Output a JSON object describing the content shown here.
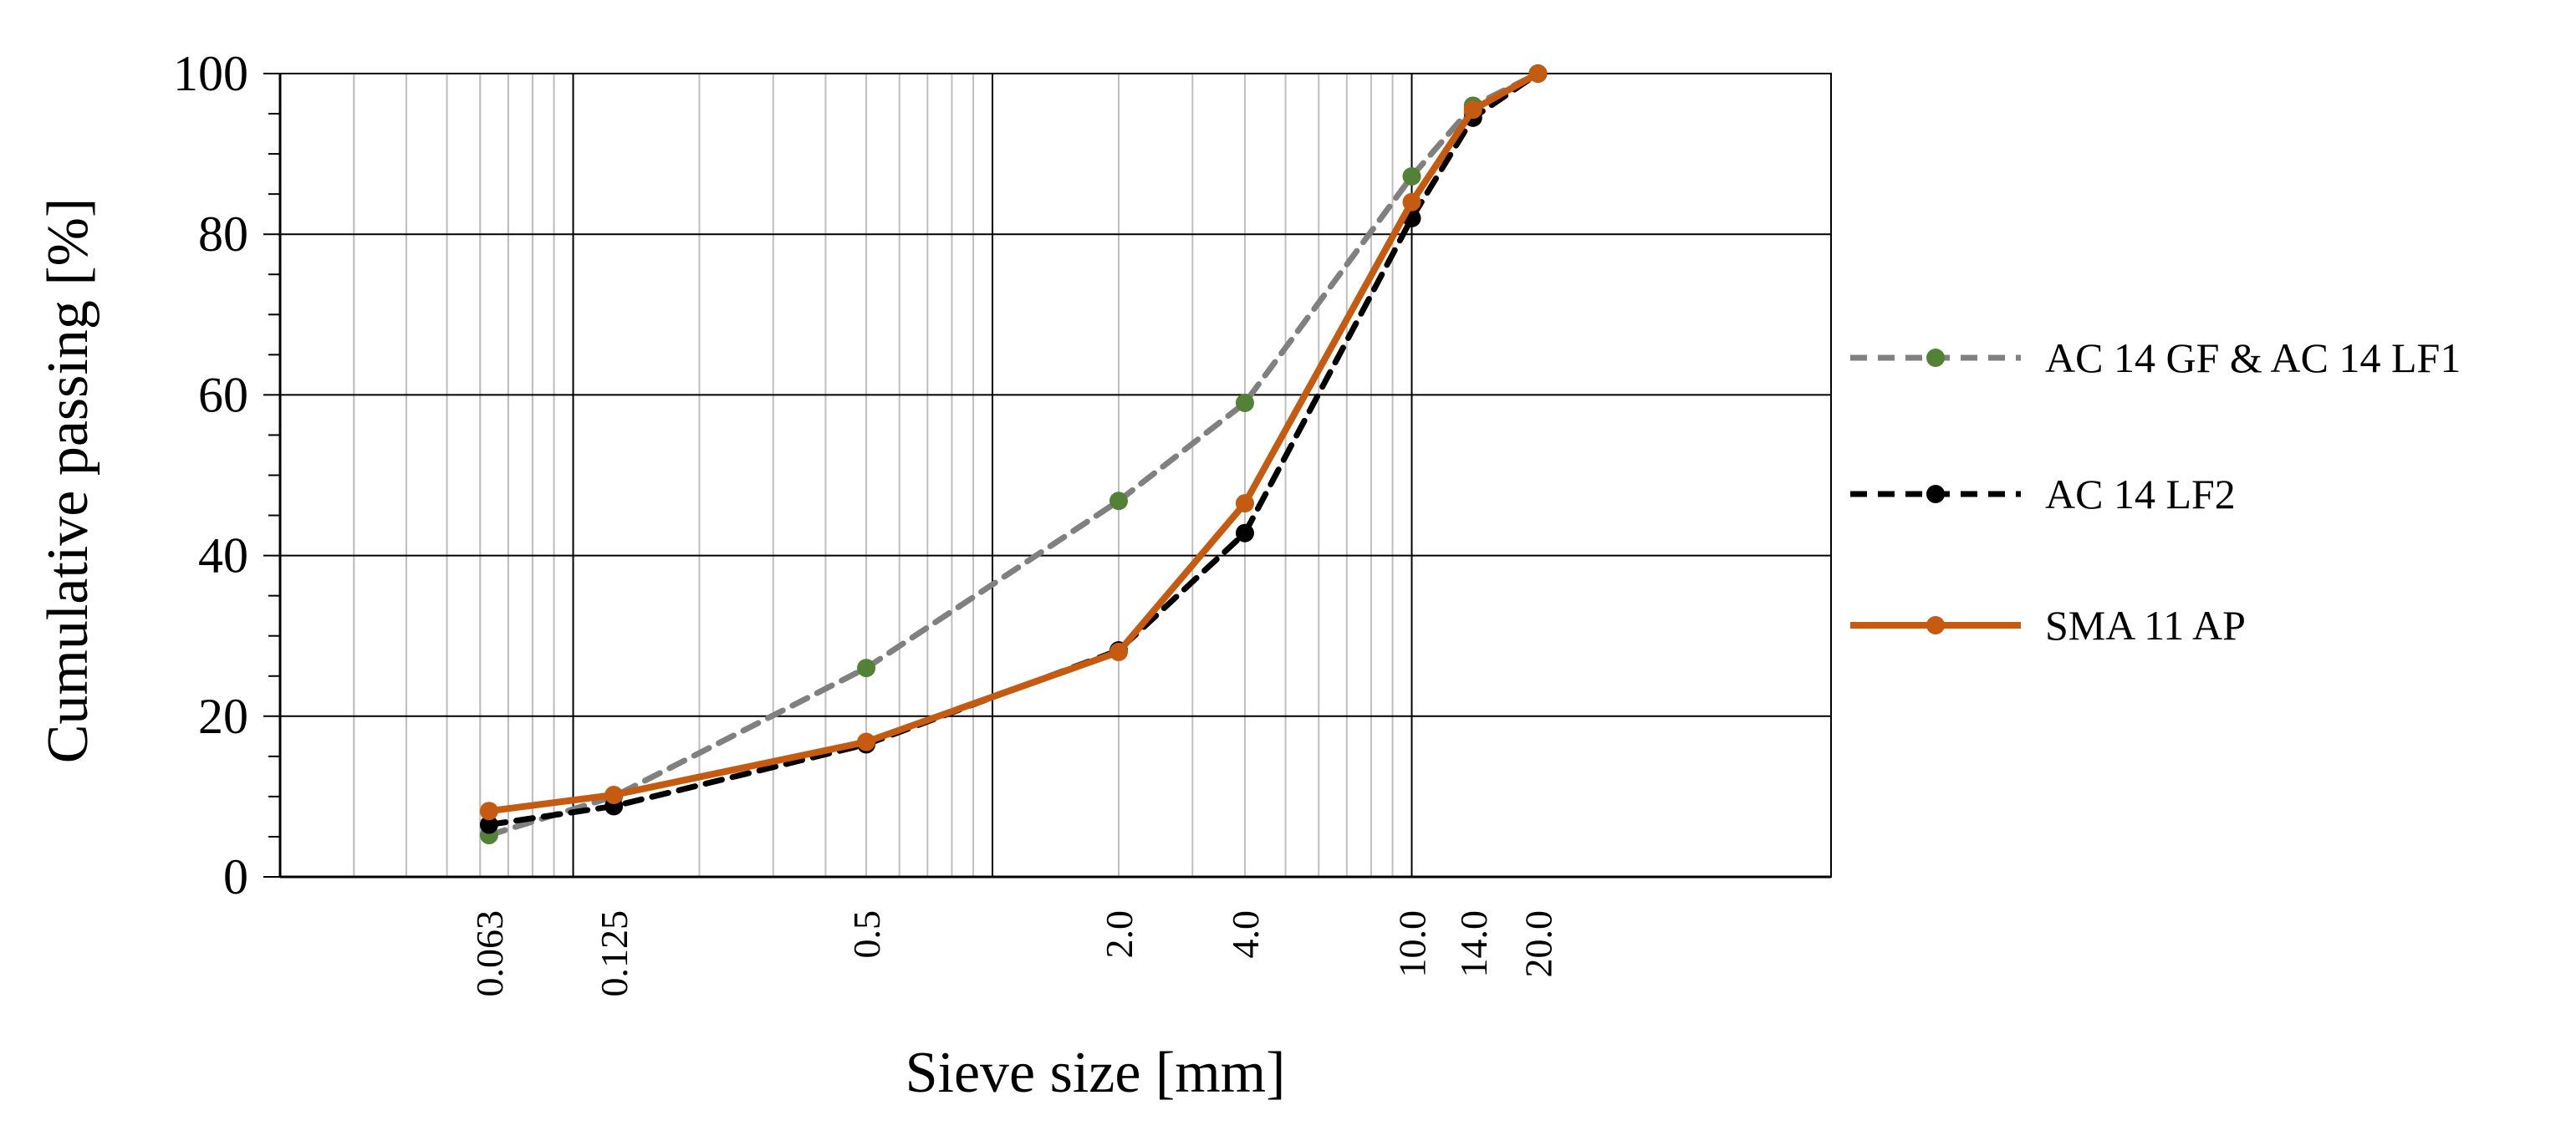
{
  "chart_data": {
    "type": "line",
    "title": "",
    "xlabel": "Sieve size [mm]",
    "ylabel": "Cumulative passing [%]",
    "x_scale": "log",
    "xlim": [
      0.02,
      100
    ],
    "ylim": [
      0,
      100
    ],
    "y_ticks": [
      "0",
      "20",
      "40",
      "60",
      "80",
      "100"
    ],
    "x_categories": [
      "0.063",
      "0.125",
      "0.5",
      "2.0",
      "4.0",
      "10.0",
      "14.0",
      "20.0"
    ],
    "grid": true,
    "legend_position": "right",
    "series": [
      {
        "name": "AC 14 GF & AC 14 LF1",
        "color": "#808080",
        "marker_color": "#538135",
        "line_style": "dashed",
        "x": [
          0.063,
          0.125,
          0.5,
          2.0,
          4.0,
          10.0,
          14.0,
          20.0
        ],
        "y": [
          5.2,
          10.0,
          26.0,
          46.8,
          59.0,
          87.2,
          96.0,
          100.0
        ]
      },
      {
        "name": "AC 14 LF2",
        "color": "#000000",
        "marker_color": "#000000",
        "line_style": "dashed",
        "x": [
          0.063,
          0.125,
          0.5,
          2.0,
          4.0,
          10.0,
          14.0,
          20.0
        ],
        "y": [
          6.5,
          8.8,
          16.5,
          28.2,
          42.8,
          82.0,
          94.5,
          100.0
        ]
      },
      {
        "name": "SMA 11 AP",
        "color": "#C55A11",
        "marker_color": "#C55A11",
        "line_style": "solid",
        "x": [
          0.063,
          0.125,
          0.5,
          2.0,
          4.0,
          10.0,
          14.0,
          20.0
        ],
        "y": [
          8.2,
          10.2,
          16.8,
          28.0,
          46.5,
          84.0,
          95.5,
          100.0
        ]
      }
    ]
  }
}
